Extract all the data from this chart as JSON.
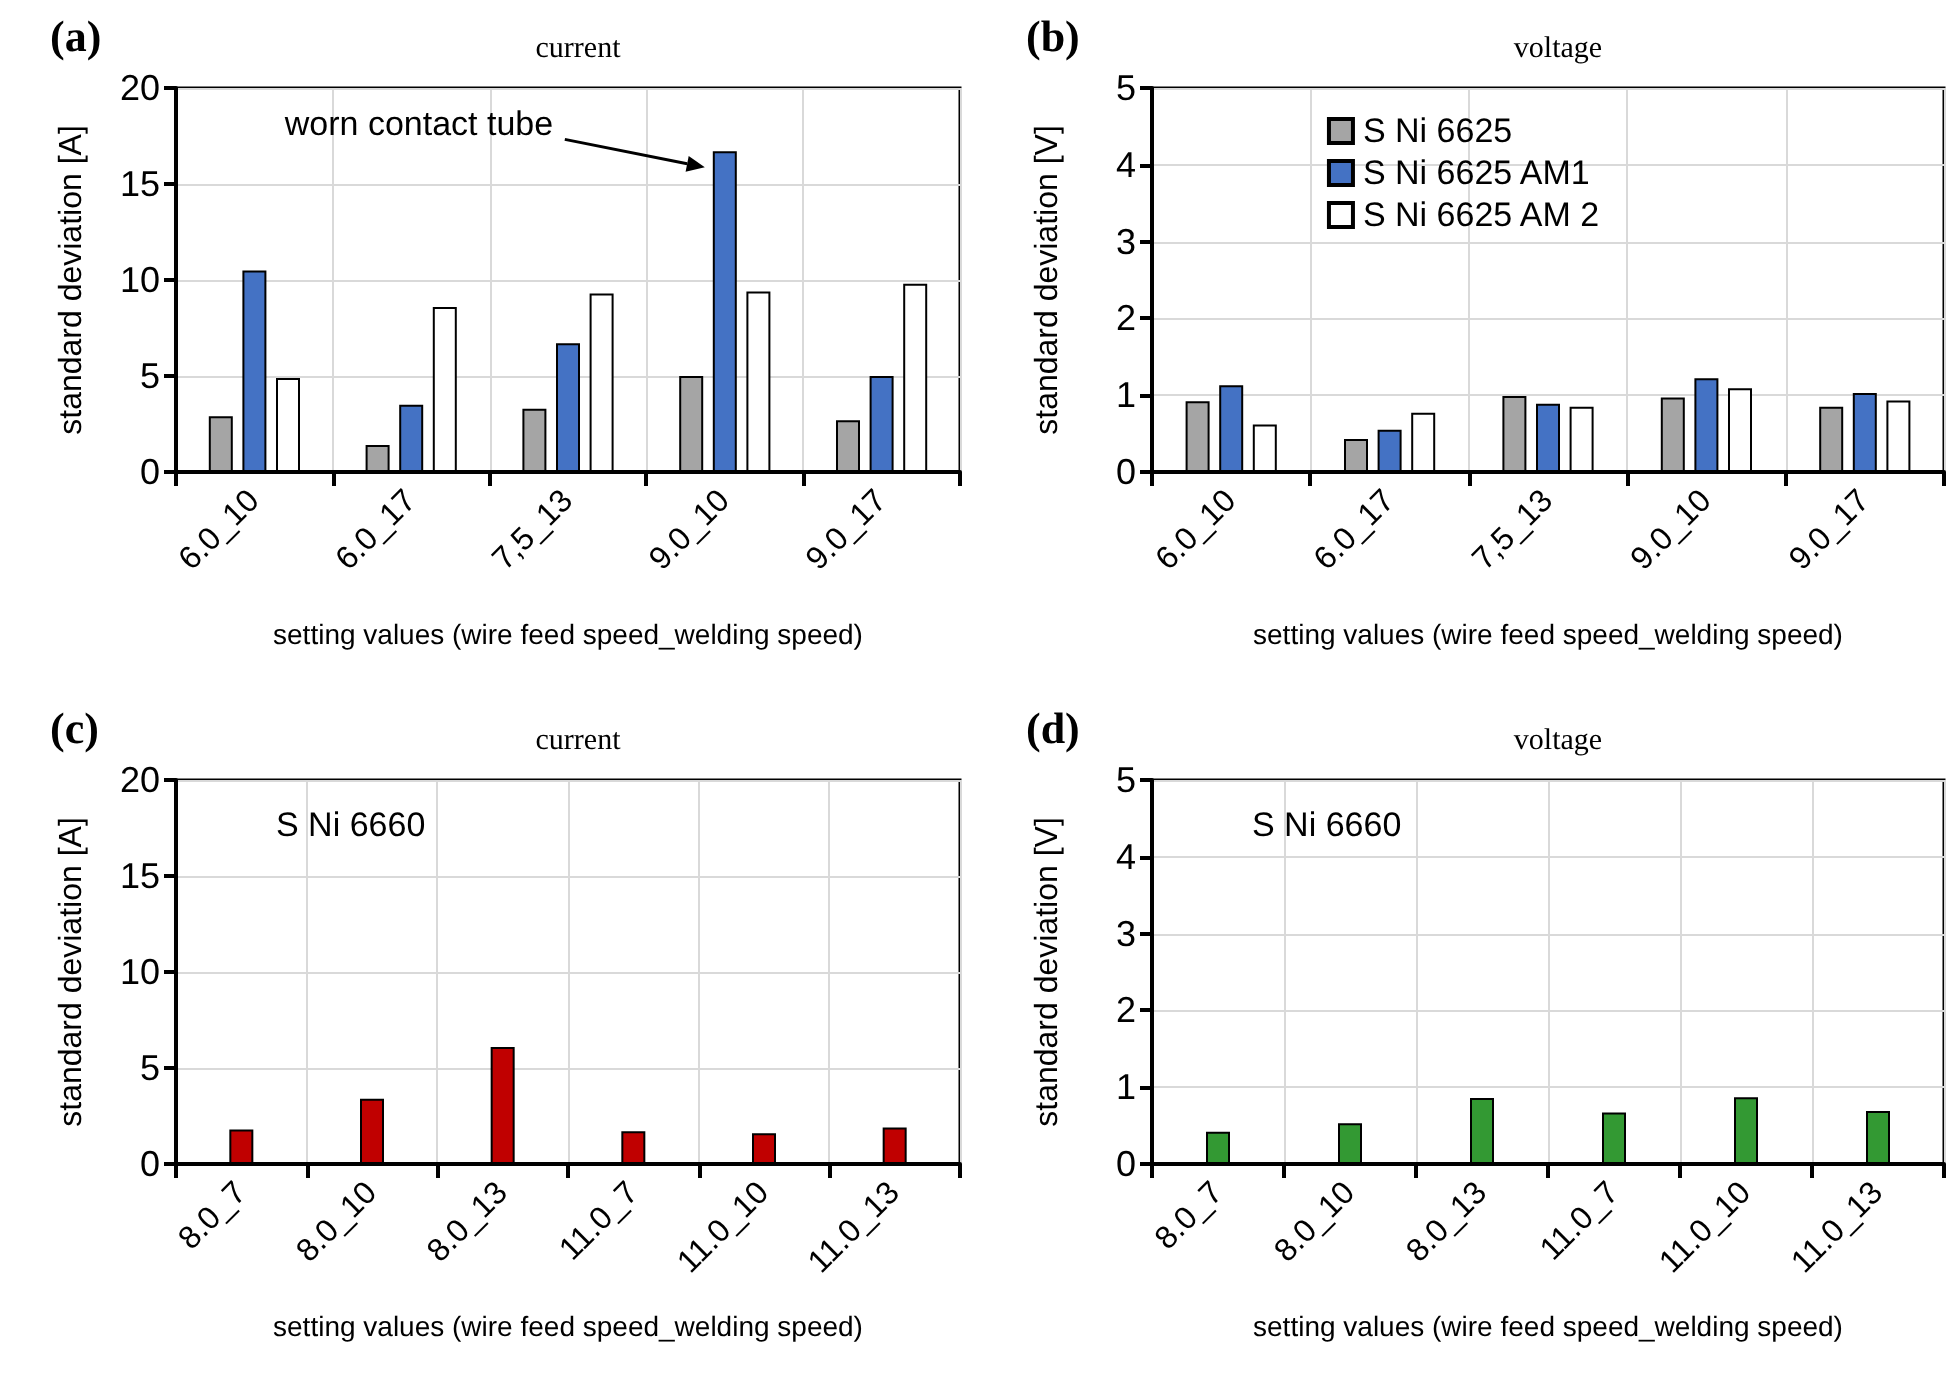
{
  "chart_data": [
    {
      "type": "bar",
      "title": "(a)",
      "subtitle": "current",
      "xlabel": "setting values (wire feed speed_welding speed)",
      "ylabel": "standard deviation [A]",
      "categories": [
        "6.0_10",
        "6.0_17",
        "7,5_13",
        "9.0_10",
        "9.0_17"
      ],
      "series": [
        {
          "color": "#a5a5a5",
          "values": [
            2.9,
            1.4,
            3.3,
            5.0,
            2.7
          ]
        },
        {
          "color": "#4472c4",
          "values": [
            10.5,
            3.5,
            6.7,
            16.7,
            5.0
          ]
        },
        {
          "color": "#ffffff",
          "values": [
            4.9,
            8.6,
            9.3,
            9.4,
            9.8
          ]
        }
      ],
      "ylim": [
        0,
        20
      ],
      "yticks": [
        0,
        5,
        10,
        15,
        20
      ],
      "grid": true,
      "legend": false,
      "annotations": [
        "worn contact tube"
      ]
    },
    {
      "type": "bar",
      "title": "(b)",
      "subtitle": "voltage",
      "xlabel": "setting values (wire feed speed_welding speed)",
      "ylabel": "standard deviation [V]",
      "categories": [
        "6.0_10",
        "6.0_17",
        "7,5_13",
        "9.0_10",
        "9.0_17"
      ],
      "series": [
        {
          "name": "S Ni 6625",
          "color": "#a5a5a5",
          "values": [
            0.92,
            0.43,
            0.99,
            0.97,
            0.85
          ]
        },
        {
          "name": "S Ni 6625 AM1",
          "color": "#4472c4",
          "values": [
            1.13,
            0.55,
            0.89,
            1.22,
            1.03
          ]
        },
        {
          "name": "S Ni 6625 AM 2",
          "color": "#ffffff",
          "values": [
            0.62,
            0.77,
            0.85,
            1.09,
            0.93
          ]
        }
      ],
      "ylim": [
        0,
        5
      ],
      "yticks": [
        0,
        1,
        2,
        3,
        4,
        5
      ],
      "grid": true,
      "legend": "top"
    },
    {
      "type": "bar",
      "title": "(c)",
      "subtitle": "current",
      "xlabel": "setting values (wire feed speed_welding speed)",
      "ylabel": "standard deviation [A]",
      "categories": [
        "8.0_7",
        "8.0_10",
        "8.0_13",
        "11.0_7",
        "11.0_10",
        "11.0_13"
      ],
      "series": [
        {
          "color": "#c00000",
          "values": [
            1.8,
            3.4,
            6.1,
            1.7,
            1.6,
            1.9
          ]
        }
      ],
      "ylim": [
        0,
        20
      ],
      "yticks": [
        0,
        5,
        10,
        15,
        20
      ],
      "grid": true,
      "legend": false,
      "annotations": [
        "S Ni 6660"
      ]
    },
    {
      "type": "bar",
      "title": "(d)",
      "subtitle": "voltage",
      "xlabel": "setting values (wire feed speed_welding speed)",
      "ylabel": "standard deviation [V]",
      "categories": [
        "8.0_7",
        "8.0_10",
        "8.0_13",
        "11.0_7",
        "11.0_10",
        "11.0_13"
      ],
      "series": [
        {
          "color": "#339933",
          "values": [
            0.42,
            0.53,
            0.86,
            0.67,
            0.87,
            0.69
          ]
        }
      ],
      "ylim": [
        0,
        5
      ],
      "yticks": [
        0,
        1,
        2,
        3,
        4,
        5
      ],
      "grid": true,
      "legend": false,
      "annotations": [
        "S Ni 6660"
      ]
    }
  ]
}
